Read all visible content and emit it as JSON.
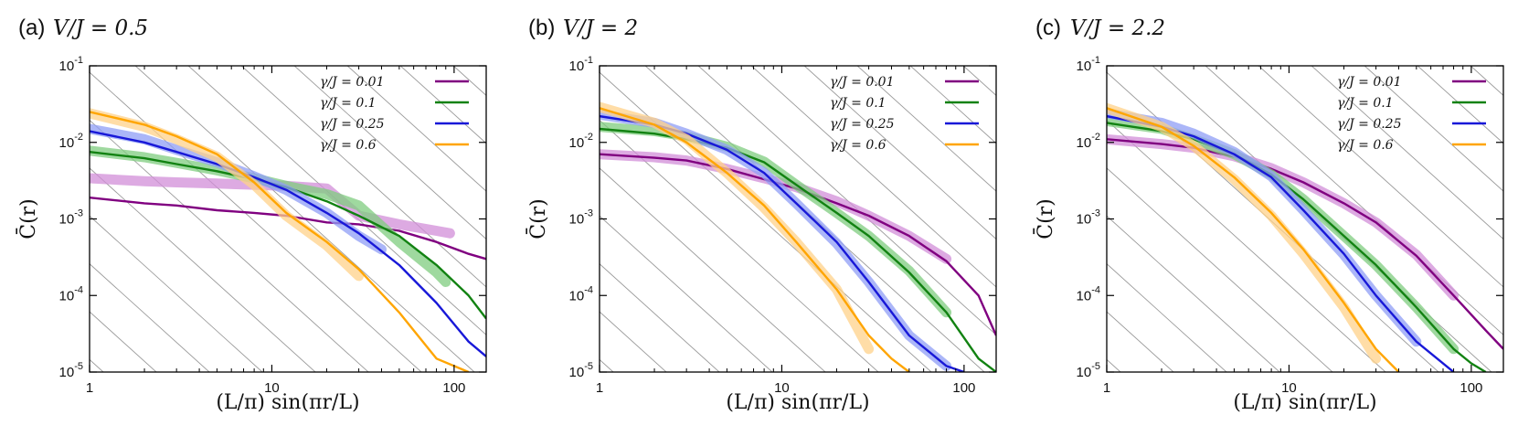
{
  "chart_data": [
    {
      "type": "line",
      "panel": "(a)",
      "title": "V/J = 0.5",
      "xlabel": "(L/π) sin(πr/L)",
      "ylabel": "C̄(r)",
      "xscale": "log",
      "yscale": "log",
      "xlim": [
        1,
        150
      ],
      "ylim": [
        1e-05,
        0.1
      ],
      "xticks": [
        {
          "v": 1,
          "label": "1"
        },
        {
          "v": 10,
          "label": "10"
        },
        {
          "v": 100,
          "label": "100"
        }
      ],
      "yticks": [
        {
          "v": 0.1,
          "exp": "-1"
        },
        {
          "v": 0.01,
          "exp": "-2"
        },
        {
          "v": 0.001,
          "exp": "-3"
        },
        {
          "v": 0.0001,
          "exp": "-4"
        },
        {
          "v": 1e-05,
          "exp": "-5"
        }
      ],
      "legend_position": "top-right",
      "series": [
        {
          "name": "γ/J = 0.01",
          "color": "#800080",
          "band_color": "#d28ed8",
          "thin": {
            "x": [
              1,
              2,
              3,
              5,
              8,
              12,
              20,
              30,
              50,
              80,
              120,
              150
            ],
            "y": [
              0.0019,
              0.0016,
              0.0015,
              0.0013,
              0.0012,
              0.0011,
              0.0009,
              0.00085,
              0.0007,
              0.0005,
              0.00035,
              0.0003
            ]
          },
          "thick": {
            "x": [
              1,
              2,
              3,
              5,
              8,
              12,
              20,
              30,
              50,
              80,
              95
            ],
            "y": [
              0.0034,
              0.0031,
              0.003,
              0.0029,
              0.0028,
              0.0027,
              0.0025,
              0.0011,
              0.00085,
              0.0007,
              0.00065
            ]
          }
        },
        {
          "name": "γ/J = 0.1",
          "color": "#128212",
          "band_color": "#7fcc7f",
          "thin": {
            "x": [
              1,
              2,
              3,
              5,
              8,
              12,
              20,
              30,
              50,
              80,
              120,
              150
            ],
            "y": [
              0.0075,
              0.0062,
              0.0052,
              0.0042,
              0.0033,
              0.0026,
              0.0017,
              0.0011,
              0.0006,
              0.00025,
              0.0001,
              5e-05
            ]
          },
          "thick": {
            "x": [
              1,
              2,
              3,
              5,
              8,
              12,
              20,
              30,
              50,
              80,
              90
            ],
            "y": [
              0.0078,
              0.0064,
              0.0054,
              0.0043,
              0.0034,
              0.0027,
              0.0021,
              0.0015,
              0.0005,
              0.0002,
              0.00015
            ]
          }
        },
        {
          "name": "γ/J = 0.25",
          "color": "#1818d8",
          "band_color": "#8f9ef5",
          "thin": {
            "x": [
              1,
              2,
              3,
              5,
              8,
              12,
              20,
              30,
              50,
              80,
              120,
              150
            ],
            "y": [
              0.014,
              0.01,
              0.0075,
              0.0052,
              0.0035,
              0.0024,
              0.0012,
              0.00065,
              0.00025,
              8e-05,
              2.5e-05,
              1.6e-05
            ]
          },
          "thick": {
            "x": [
              1,
              2,
              3,
              5,
              8,
              12,
              20,
              30,
              40
            ],
            "y": [
              0.015,
              0.011,
              0.008,
              0.0055,
              0.0036,
              0.0024,
              0.0012,
              0.0006,
              0.0004
            ]
          }
        },
        {
          "name": "γ/J = 0.6",
          "color": "#ffa500",
          "band_color": "#ffd28a",
          "thin": {
            "x": [
              1,
              2,
              3,
              5,
              8,
              12,
              20,
              30,
              50,
              80,
              120
            ],
            "y": [
              0.025,
              0.017,
              0.012,
              0.007,
              0.003,
              0.0012,
              0.0005,
              0.00022,
              6e-05,
              1.5e-05,
              1e-05
            ]
          },
          "thick": {
            "x": [
              1,
              2,
              3,
              5,
              8,
              12,
              20,
              30
            ],
            "y": [
              0.024,
              0.016,
              0.011,
              0.0065,
              0.0028,
              0.0011,
              0.00045,
              0.00018
            ]
          }
        }
      ]
    },
    {
      "type": "line",
      "panel": "(b)",
      "title": "V/J = 2",
      "xlabel": "(L/π) sin(πr/L)",
      "ylabel": "C̄(r)",
      "xscale": "log",
      "yscale": "log",
      "xlim": [
        1,
        150
      ],
      "ylim": [
        1e-05,
        0.1
      ],
      "xticks": [
        {
          "v": 1,
          "label": "1"
        },
        {
          "v": 10,
          "label": "10"
        },
        {
          "v": 100,
          "label": "100"
        }
      ],
      "yticks": [
        {
          "v": 0.1,
          "exp": "-1"
        },
        {
          "v": 0.01,
          "exp": "-2"
        },
        {
          "v": 0.001,
          "exp": "-3"
        },
        {
          "v": 0.0001,
          "exp": "-4"
        },
        {
          "v": 1e-05,
          "exp": "-5"
        }
      ],
      "legend_position": "top-right",
      "series": [
        {
          "name": "γ/J = 0.01",
          "color": "#800080",
          "band_color": "#d28ed8",
          "thin": {
            "x": [
              1,
              2,
              3,
              5,
              8,
              12,
              20,
              30,
              50,
              80,
              120,
              150
            ],
            "y": [
              0.007,
              0.0063,
              0.0058,
              0.0045,
              0.0033,
              0.0025,
              0.0016,
              0.0011,
              0.0006,
              0.00028,
              0.0001,
              3e-05
            ]
          },
          "thick": {
            "x": [
              1,
              2,
              3,
              5,
              8,
              12,
              20,
              30,
              50,
              80
            ],
            "y": [
              0.007,
              0.0064,
              0.0058,
              0.0045,
              0.0034,
              0.0026,
              0.0017,
              0.0011,
              0.0006,
              0.0003
            ]
          }
        },
        {
          "name": "γ/J = 0.1",
          "color": "#128212",
          "band_color": "#7fcc7f",
          "thin": {
            "x": [
              1,
              2,
              3,
              5,
              8,
              12,
              20,
              30,
              50,
              80,
              120,
              150
            ],
            "y": [
              0.015,
              0.013,
              0.011,
              0.0085,
              0.0055,
              0.0028,
              0.0012,
              0.0006,
              0.0002,
              6e-05,
              1.5e-05,
              1e-05
            ]
          },
          "thick": {
            "x": [
              1,
              2,
              3,
              5,
              8,
              12,
              20,
              30,
              50,
              80
            ],
            "y": [
              0.016,
              0.014,
              0.012,
              0.0088,
              0.0056,
              0.0028,
              0.0012,
              0.0006,
              0.00021,
              6e-05
            ]
          }
        },
        {
          "name": "γ/J = 0.25",
          "color": "#1818d8",
          "band_color": "#8f9ef5",
          "thin": {
            "x": [
              1,
              2,
              3,
              5,
              8,
              12,
              20,
              30,
              50,
              80,
              100
            ],
            "y": [
              0.022,
              0.017,
              0.013,
              0.008,
              0.004,
              0.0016,
              0.0005,
              0.00015,
              3e-05,
              1.2e-05,
              1e-05
            ]
          },
          "thick": {
            "x": [
              1,
              2,
              3,
              5,
              8,
              12,
              20,
              30,
              50,
              80
            ],
            "y": [
              0.023,
              0.018,
              0.013,
              0.008,
              0.004,
              0.0016,
              0.00048,
              0.00015,
              3e-05,
              1.2e-05
            ]
          }
        },
        {
          "name": "γ/J = 0.6",
          "color": "#ffa500",
          "band_color": "#ffd28a",
          "thin": {
            "x": [
              1,
              2,
              3,
              5,
              8,
              12,
              20,
              30,
              40,
              50
            ],
            "y": [
              0.028,
              0.017,
              0.01,
              0.004,
              0.0015,
              0.0005,
              0.00012,
              3e-05,
              1.5e-05,
              1e-05
            ]
          },
          "thick": {
            "x": [
              1,
              2,
              3,
              5,
              8,
              12,
              20,
              30
            ],
            "y": [
              0.029,
              0.018,
              0.011,
              0.004,
              0.0014,
              0.0005,
              0.00012,
              2e-05
            ]
          }
        }
      ]
    },
    {
      "type": "line",
      "panel": "(c)",
      "title": "V/J = 2.2",
      "xlabel": "(L/π) sin(πr/L)",
      "ylabel": "C̄(r)",
      "xscale": "log",
      "yscale": "log",
      "xlim": [
        1,
        150
      ],
      "ylim": [
        1e-05,
        0.1
      ],
      "xticks": [
        {
          "v": 1,
          "label": "1"
        },
        {
          "v": 10,
          "label": "10"
        },
        {
          "v": 100,
          "label": "100"
        }
      ],
      "yticks": [
        {
          "v": 0.1,
          "exp": "-1"
        },
        {
          "v": 0.01,
          "exp": "-2"
        },
        {
          "v": 0.001,
          "exp": "-3"
        },
        {
          "v": 0.0001,
          "exp": "-4"
        },
        {
          "v": 1e-05,
          "exp": "-5"
        }
      ],
      "legend_position": "top-right",
      "series": [
        {
          "name": "γ/J = 0.01",
          "color": "#800080",
          "band_color": "#d28ed8",
          "thin": {
            "x": [
              1,
              2,
              3,
              5,
              8,
              12,
              20,
              30,
              50,
              80,
              120,
              150
            ],
            "y": [
              0.011,
              0.0095,
              0.0085,
              0.0065,
              0.0045,
              0.003,
              0.0016,
              0.0009,
              0.00033,
              0.0001,
              3.5e-05,
              2e-05
            ]
          },
          "thick": {
            "x": [
              1,
              2,
              3,
              5,
              8,
              12,
              20,
              30,
              50,
              80
            ],
            "y": [
              0.011,
              0.0095,
              0.0085,
              0.0066,
              0.0046,
              0.003,
              0.0016,
              0.0009,
              0.00034,
              0.0001
            ]
          }
        },
        {
          "name": "γ/J = 0.1",
          "color": "#128212",
          "band_color": "#7fcc7f",
          "thin": {
            "x": [
              1,
              2,
              3,
              5,
              8,
              12,
              20,
              30,
              50,
              80,
              100,
              120
            ],
            "y": [
              0.018,
              0.014,
              0.011,
              0.007,
              0.0038,
              0.0018,
              0.0006,
              0.00025,
              7e-05,
              2e-05,
              1.3e-05,
              1e-05
            ]
          },
          "thick": {
            "x": [
              1,
              2,
              3,
              5,
              8,
              12,
              20,
              30,
              50,
              80
            ],
            "y": [
              0.019,
              0.015,
              0.011,
              0.007,
              0.0038,
              0.0018,
              0.0006,
              0.00025,
              7e-05,
              2e-05
            ]
          }
        },
        {
          "name": "γ/J = 0.25",
          "color": "#1818d8",
          "band_color": "#8f9ef5",
          "thin": {
            "x": [
              1,
              2,
              3,
              5,
              8,
              12,
              20,
              30,
              50,
              80
            ],
            "y": [
              0.022,
              0.016,
              0.012,
              0.007,
              0.0035,
              0.0013,
              0.00035,
              0.0001,
              2.5e-05,
              1e-05
            ]
          },
          "thick": {
            "x": [
              1,
              2,
              3,
              5,
              8,
              12,
              20,
              30,
              50
            ],
            "y": [
              0.024,
              0.018,
              0.013,
              0.0075,
              0.0036,
              0.0013,
              0.00034,
              0.0001,
              2.5e-05
            ]
          }
        },
        {
          "name": "γ/J = 0.6",
          "color": "#ffa500",
          "band_color": "#ffd28a",
          "thin": {
            "x": [
              1,
              2,
              3,
              5,
              8,
              12,
              20,
              30,
              40
            ],
            "y": [
              0.028,
              0.016,
              0.009,
              0.0035,
              0.0012,
              0.0004,
              8e-05,
              2e-05,
              1e-05
            ]
          },
          "thick": {
            "x": [
              1,
              2,
              3,
              5,
              8,
              12,
              20,
              30
            ],
            "y": [
              0.028,
              0.016,
              0.009,
              0.0033,
              0.0011,
              0.00035,
              7e-05,
              1.5e-05
            ]
          }
        }
      ]
    }
  ]
}
